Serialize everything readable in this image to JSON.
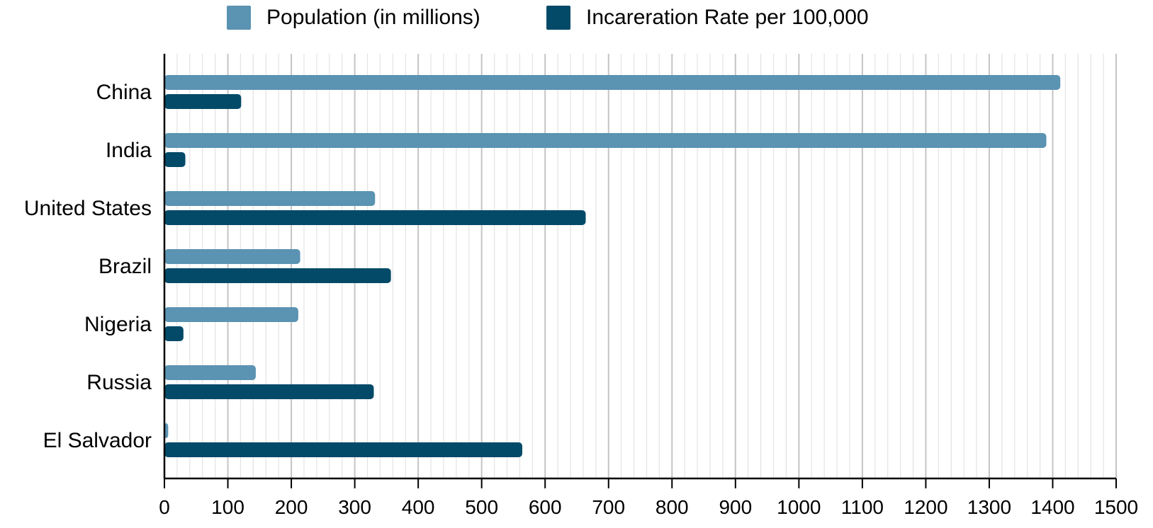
{
  "chart_data": {
    "type": "bar",
    "orientation": "horizontal",
    "title": "",
    "xlabel": "",
    "ylabel": "",
    "xlim": [
      0,
      1500
    ],
    "major_ticks": [
      0,
      100,
      200,
      300,
      400,
      500,
      600,
      700,
      800,
      900,
      1000,
      1100,
      1200,
      1300,
      1400,
      1500
    ],
    "minor_tick_step": 20,
    "grid": true,
    "legend_position": "top",
    "categories": [
      "China",
      "India",
      "United States",
      "Brazil",
      "Nigeria",
      "Russia",
      "El Salvador"
    ],
    "series": [
      {
        "name": "Population (in millions)",
        "color": "#5b93b2",
        "values": [
          1412,
          1390,
          332,
          214,
          211,
          144,
          6
        ]
      },
      {
        "name": "Incareration Rate per 100,000",
        "color": "#034a68",
        "values": [
          121,
          33,
          664,
          357,
          30,
          330,
          564
        ]
      }
    ]
  }
}
